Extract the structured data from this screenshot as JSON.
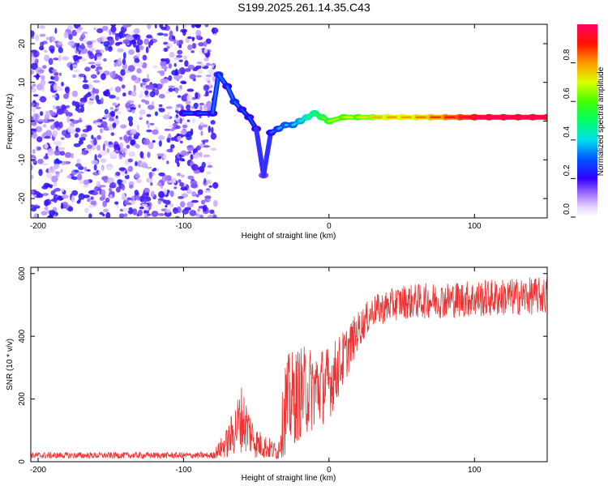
{
  "title": "S199.2025.261.14.35.C43",
  "chart_data": [
    {
      "type": "heatmap",
      "xlabel": "Height of straight line (km)",
      "ylabel": "Frequency (Hz)",
      "xlim": [
        -205,
        150
      ],
      "ylim": [
        -25,
        25
      ],
      "xticks": [
        -200,
        -100,
        0,
        100
      ],
      "yticks": [
        -20,
        -10,
        0,
        10,
        20
      ],
      "colorbar": {
        "label": "Normalized spectral amplitude",
        "range": [
          0,
          1
        ],
        "ticks": [
          "0.0",
          "0.2",
          "0.4",
          "0.6",
          "0.8"
        ],
        "tick_values": [
          0.0,
          0.2,
          0.4,
          0.6,
          0.8
        ]
      },
      "noise_region": {
        "x_from": -205,
        "x_to": -78,
        "level": 0.1
      },
      "ridge": [
        {
          "x": -100,
          "y": 2,
          "a": 0.2
        },
        {
          "x": -90,
          "y": 2,
          "a": 0.2
        },
        {
          "x": -80,
          "y": 2,
          "a": 0.2
        },
        {
          "x": -76,
          "y": 12,
          "a": 0.25
        },
        {
          "x": -70,
          "y": 9,
          "a": 0.2
        },
        {
          "x": -65,
          "y": 5,
          "a": 0.25
        },
        {
          "x": -60,
          "y": 3,
          "a": 0.2
        },
        {
          "x": -55,
          "y": 1,
          "a": 0.2
        },
        {
          "x": -50,
          "y": -2,
          "a": 0.2
        },
        {
          "x": -45,
          "y": -14,
          "a": 0.15
        },
        {
          "x": -40,
          "y": -3,
          "a": 0.2
        },
        {
          "x": -35,
          "y": -2,
          "a": 0.25
        },
        {
          "x": -30,
          "y": -1,
          "a": 0.3
        },
        {
          "x": -25,
          "y": -1,
          "a": 0.3
        },
        {
          "x": -20,
          "y": 0,
          "a": 0.35
        },
        {
          "x": -15,
          "y": 1,
          "a": 0.4
        },
        {
          "x": -10,
          "y": 2,
          "a": 0.45
        },
        {
          "x": -5,
          "y": 1,
          "a": 0.5
        },
        {
          "x": 0,
          "y": 0,
          "a": 0.55
        },
        {
          "x": 10,
          "y": 1,
          "a": 0.6
        },
        {
          "x": 20,
          "y": 1,
          "a": 0.6
        },
        {
          "x": 30,
          "y": 1,
          "a": 0.65
        },
        {
          "x": 40,
          "y": 1,
          "a": 0.7
        },
        {
          "x": 50,
          "y": 1,
          "a": 0.7
        },
        {
          "x": 60,
          "y": 1,
          "a": 0.7
        },
        {
          "x": 70,
          "y": 1,
          "a": 0.75
        },
        {
          "x": 80,
          "y": 1,
          "a": 0.8
        },
        {
          "x": 90,
          "y": 1,
          "a": 0.85
        },
        {
          "x": 100,
          "y": 1,
          "a": 0.9
        },
        {
          "x": 110,
          "y": 1,
          "a": 0.95
        },
        {
          "x": 120,
          "y": 1,
          "a": 0.95
        },
        {
          "x": 130,
          "y": 1,
          "a": 0.95
        },
        {
          "x": 140,
          "y": 1,
          "a": 0.95
        },
        {
          "x": 150,
          "y": 1,
          "a": 0.95
        }
      ]
    },
    {
      "type": "line",
      "xlabel": "Height of straight line (km)",
      "ylabel": "SNR (10 * v/v)",
      "xlim": [
        -205,
        150
      ],
      "ylim": [
        0,
        620
      ],
      "xticks": [
        -200,
        -100,
        0,
        100
      ],
      "yticks": [
        0,
        200,
        400,
        600
      ],
      "color": "#ee3333",
      "envelope": [
        {
          "x": -205,
          "mean": 20,
          "noise": 10
        },
        {
          "x": -80,
          "mean": 20,
          "noise": 10
        },
        {
          "x": -70,
          "mean": 60,
          "noise": 50
        },
        {
          "x": -60,
          "mean": 140,
          "noise": 110
        },
        {
          "x": -50,
          "mean": 60,
          "noise": 50
        },
        {
          "x": -35,
          "mean": 30,
          "noise": 25
        },
        {
          "x": -30,
          "mean": 180,
          "noise": 160
        },
        {
          "x": -20,
          "mean": 220,
          "noise": 150
        },
        {
          "x": 0,
          "mean": 250,
          "noise": 120
        },
        {
          "x": 10,
          "mean": 330,
          "noise": 90
        },
        {
          "x": 20,
          "mean": 420,
          "noise": 60
        },
        {
          "x": 30,
          "mean": 480,
          "noise": 50
        },
        {
          "x": 50,
          "mean": 510,
          "noise": 55
        },
        {
          "x": 100,
          "mean": 520,
          "noise": 60
        },
        {
          "x": 150,
          "mean": 530,
          "noise": 60
        }
      ]
    }
  ]
}
